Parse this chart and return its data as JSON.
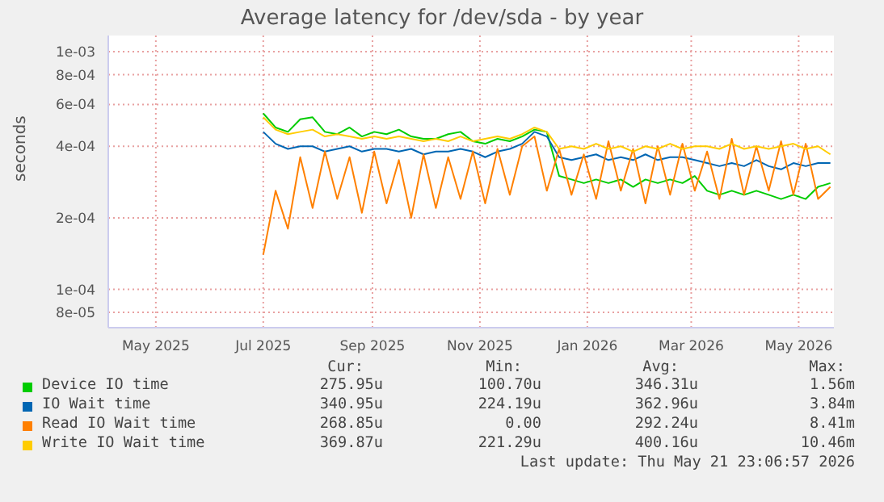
{
  "chart_data": {
    "type": "line",
    "title": "Average latency for /dev/sda - by year",
    "ylabel": "seconds",
    "log": "y",
    "grid": true,
    "legend": "bottom",
    "marker": "none",
    "x": [
      "2025-07-01",
      "2025-07-08",
      "2025-07-15",
      "2025-07-22",
      "2025-07-29",
      "2025-08-05",
      "2025-08-12",
      "2025-08-19",
      "2025-08-26",
      "2025-09-02",
      "2025-09-09",
      "2025-09-16",
      "2025-09-23",
      "2025-09-30",
      "2025-10-07",
      "2025-10-14",
      "2025-10-21",
      "2025-10-28",
      "2025-11-04",
      "2025-11-11",
      "2025-11-18",
      "2025-11-25",
      "2025-12-02",
      "2025-12-09",
      "2025-12-16",
      "2025-12-23",
      "2025-12-30",
      "2026-01-06",
      "2026-01-13",
      "2026-01-20",
      "2026-01-27",
      "2026-02-03",
      "2026-02-10",
      "2026-02-17",
      "2026-02-24",
      "2026-03-03",
      "2026-03-10",
      "2026-03-17",
      "2026-03-24",
      "2026-03-31",
      "2026-04-07",
      "2026-04-14",
      "2026-04-21",
      "2026-04-28",
      "2026-05-05",
      "2026-05-12",
      "2026-05-19"
    ],
    "xlim": [
      "2025-04-04",
      "2026-05-21"
    ],
    "xticks": [
      {
        "value": "2025-05-01",
        "label": "May 2025"
      },
      {
        "value": "2025-07-01",
        "label": "Jul 2025"
      },
      {
        "value": "2025-09-01",
        "label": "Sep 2025"
      },
      {
        "value": "2025-11-01",
        "label": "Nov 2025"
      },
      {
        "value": "2026-01-01",
        "label": "Jan 2026"
      },
      {
        "value": "2026-03-01",
        "label": "Mar 2026"
      },
      {
        "value": "2026-05-01",
        "label": "May 2026"
      }
    ],
    "ylim": [
      6.9e-05,
      0.00117
    ],
    "yticks": [
      {
        "value": 8e-05,
        "label": "8e-05"
      },
      {
        "value": 0.0001,
        "label": "1e-04"
      },
      {
        "value": 0.0002,
        "label": "2e-04"
      },
      {
        "value": 0.0004,
        "label": "4e-04"
      },
      {
        "value": 0.0006,
        "label": "6e-04"
      },
      {
        "value": 0.0008,
        "label": "8e-04"
      },
      {
        "value": 0.001,
        "label": "1e-03"
      }
    ],
    "series": [
      {
        "name": "Device IO time",
        "color": "#00cc00",
        "values": [
          0.00055,
          0.00048,
          0.00046,
          0.00052,
          0.00053,
          0.00046,
          0.00045,
          0.00048,
          0.00044,
          0.00046,
          0.00045,
          0.00047,
          0.00044,
          0.00043,
          0.00043,
          0.00045,
          0.00046,
          0.00042,
          0.00041,
          0.00043,
          0.00042,
          0.00044,
          0.00047,
          0.00046,
          0.0003,
          0.00029,
          0.00028,
          0.00029,
          0.00028,
          0.00029,
          0.00027,
          0.00029,
          0.00028,
          0.00029,
          0.00028,
          0.0003,
          0.00026,
          0.00025,
          0.00026,
          0.00025,
          0.00026,
          0.00025,
          0.00024,
          0.00025,
          0.00024,
          0.00027,
          0.00028
        ]
      },
      {
        "name": "IO Wait time",
        "color": "#0066b3",
        "values": [
          0.00046,
          0.00041,
          0.00039,
          0.0004,
          0.0004,
          0.00038,
          0.00039,
          0.0004,
          0.00038,
          0.00039,
          0.00039,
          0.00038,
          0.00039,
          0.00037,
          0.00038,
          0.00038,
          0.00039,
          0.00038,
          0.00036,
          0.00038,
          0.00039,
          0.00041,
          0.00046,
          0.00044,
          0.00036,
          0.00035,
          0.00036,
          0.00037,
          0.00035,
          0.00036,
          0.00035,
          0.00037,
          0.00035,
          0.00036,
          0.00036,
          0.00035,
          0.00034,
          0.00033,
          0.00034,
          0.00033,
          0.00035,
          0.00033,
          0.00032,
          0.00034,
          0.00033,
          0.00034,
          0.00034
        ]
      },
      {
        "name": "Read IO Wait time",
        "color": "#ff8000",
        "values": [
          0.00014,
          0.00026,
          0.00018,
          0.00036,
          0.00022,
          0.00038,
          0.00024,
          0.00036,
          0.00021,
          0.00038,
          0.00023,
          0.00035,
          0.0002,
          0.00037,
          0.00022,
          0.00036,
          0.00024,
          0.00038,
          0.00023,
          0.00039,
          0.00025,
          0.0004,
          0.00044,
          0.00026,
          0.00039,
          0.00025,
          0.00037,
          0.00024,
          0.00042,
          0.00026,
          0.00039,
          0.00023,
          0.0004,
          0.00025,
          0.00041,
          0.00026,
          0.00038,
          0.00024,
          0.00043,
          0.00025,
          0.0004,
          0.00026,
          0.00042,
          0.00025,
          0.00041,
          0.00024,
          0.00027
        ]
      },
      {
        "name": "Write IO Wait time",
        "color": "#ffcc00",
        "values": [
          0.00053,
          0.00047,
          0.00045,
          0.00046,
          0.00047,
          0.00044,
          0.00045,
          0.00044,
          0.00043,
          0.00044,
          0.00043,
          0.00044,
          0.00043,
          0.00042,
          0.00043,
          0.00042,
          0.00044,
          0.00042,
          0.00043,
          0.00044,
          0.00043,
          0.00045,
          0.00048,
          0.00046,
          0.00039,
          0.0004,
          0.00039,
          0.00041,
          0.00039,
          0.0004,
          0.00038,
          0.0004,
          0.00039,
          0.00041,
          0.00039,
          0.0004,
          0.0004,
          0.00039,
          0.00041,
          0.00039,
          0.0004,
          0.00039,
          0.0004,
          0.00041,
          0.00039,
          0.0004,
          0.00037
        ]
      }
    ],
    "annotations": [
      "Cur:",
      "Min:",
      "Avg:",
      "Max:",
      "275.95u",
      "100.70u",
      "346.31u",
      "1.56m",
      "340.95u",
      "224.19u",
      "362.96u",
      "3.84m",
      "268.85u",
      "0.00",
      "292.24u",
      "8.41m",
      "369.87u",
      "221.29u",
      "400.16u",
      "10.46m",
      "Last update: Thu May 21 23:06:57 2026"
    ]
  }
}
